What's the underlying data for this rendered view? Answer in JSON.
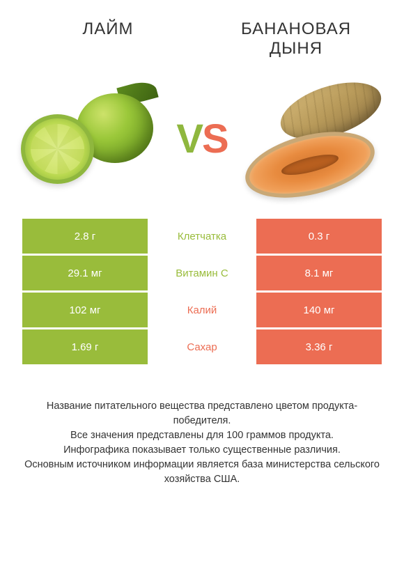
{
  "header": {
    "left": "ЛАЙМ",
    "right": "БАНАНОВАЯ ДЫНЯ"
  },
  "vs": {
    "v": "V",
    "s": "S"
  },
  "colors": {
    "green": "#99bc3b",
    "orange": "#ec6d53",
    "mid_green": "#99bc3b",
    "mid_orange": "#ec6d53",
    "mid_default": "#555555"
  },
  "rows": [
    {
      "left": "2.8 г",
      "mid": "Клетчатка",
      "right": "0.3 г",
      "winner": "left"
    },
    {
      "left": "29.1 мг",
      "mid": "Витамин C",
      "right": "8.1 мг",
      "winner": "left"
    },
    {
      "left": "102 мг",
      "mid": "Калий",
      "right": "140 мг",
      "winner": "right"
    },
    {
      "left": "1.69 г",
      "mid": "Сахар",
      "right": "3.36 г",
      "winner": "right"
    }
  ],
  "footer": {
    "l1": "Название питательного вещества представлено цветом продукта-победителя.",
    "l2": "Все значения представлены для 100 граммов продукта.",
    "l3": "Инфографика показывает только существенные различия.",
    "l4": "Основным источником информации является база министерства сельского хозяйства США."
  }
}
